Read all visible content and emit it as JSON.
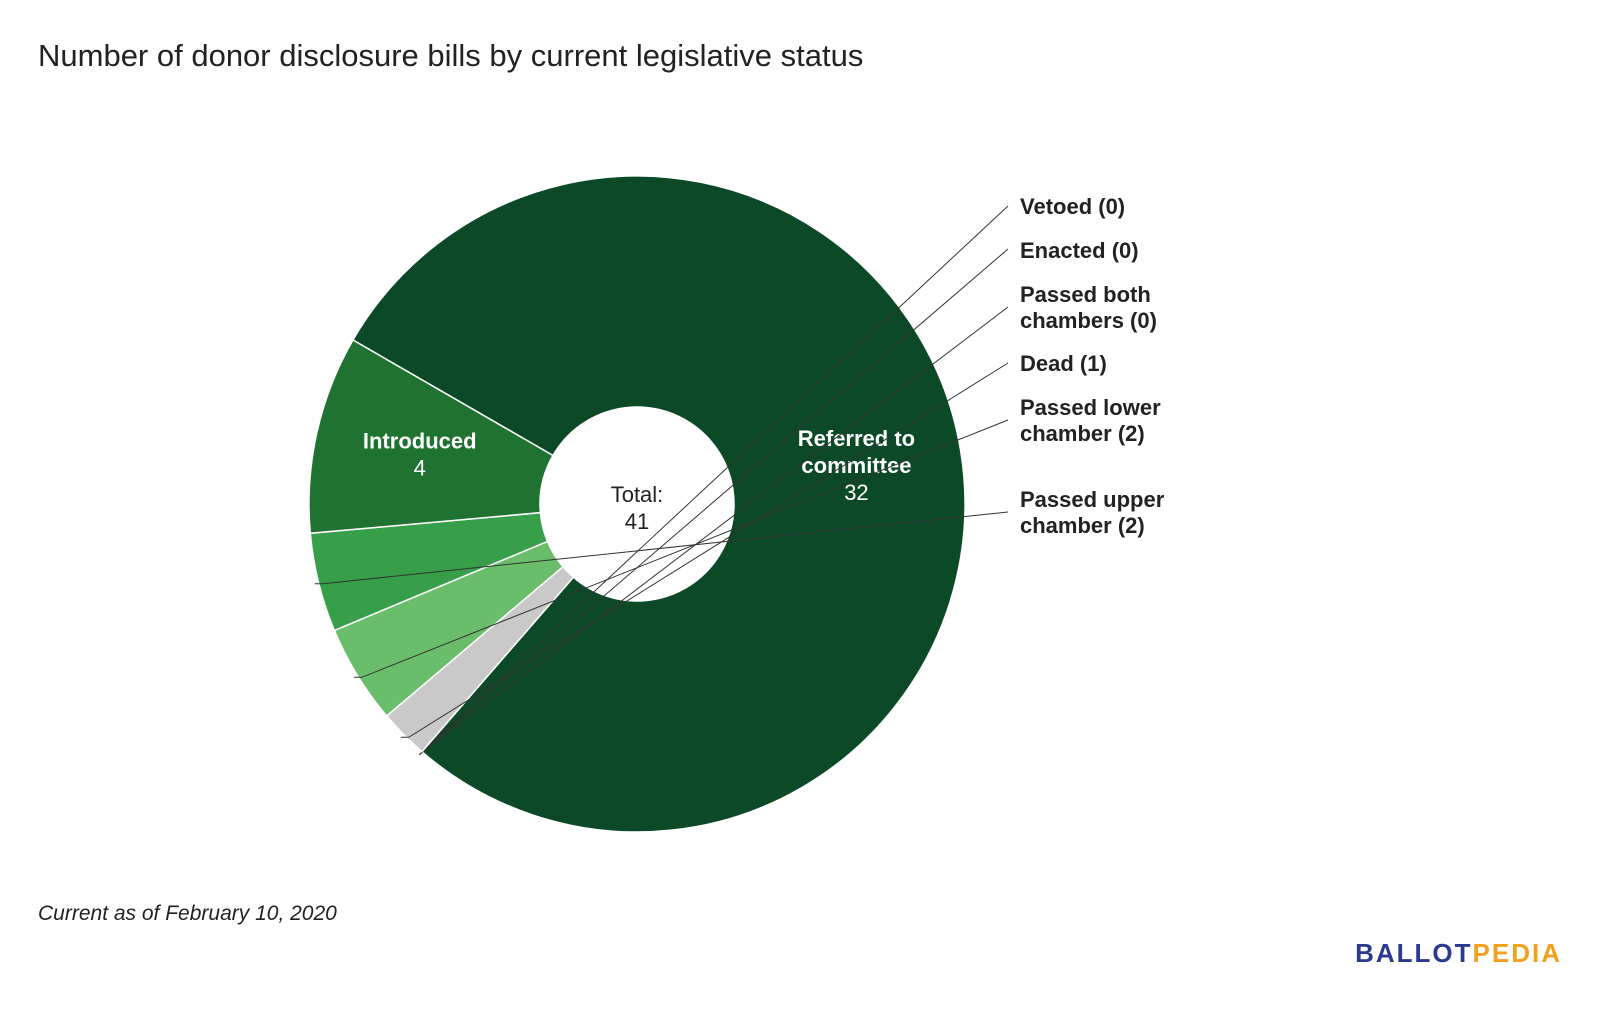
{
  "chart_data": {
    "type": "pie",
    "title": "Number of donor disclosure bills by current legislative status",
    "total_label": "Total:",
    "total_value": "41",
    "slices": [
      {
        "name": "Referred to committee",
        "label_lines": [
          "Referred to",
          "committee"
        ],
        "value": 32,
        "value_label": "32",
        "color": "#0c4a27",
        "label_style": "inside"
      },
      {
        "name": "Vetoed",
        "label_lines": [
          "Vetoed (0)"
        ],
        "value": 0,
        "color": "#8e8e8e",
        "label_style": "callout"
      },
      {
        "name": "Enacted",
        "label_lines": [
          "Enacted (0)"
        ],
        "value": 0,
        "color": "#a8a8a8",
        "label_style": "callout"
      },
      {
        "name": "Passed both chambers",
        "label_lines": [
          "Passed both",
          "chambers (0)"
        ],
        "value": 0,
        "color": "#b8b8b8",
        "label_style": "callout"
      },
      {
        "name": "Dead",
        "label_lines": [
          "Dead (1)"
        ],
        "value": 1,
        "color": "#c9c9c9",
        "label_style": "callout"
      },
      {
        "name": "Passed lower chamber",
        "label_lines": [
          "Passed lower",
          "chamber (2)"
        ],
        "value": 2,
        "color": "#6abd6a",
        "label_style": "callout"
      },
      {
        "name": "Passed upper chamber",
        "label_lines": [
          "Passed upper",
          "chamber (2)"
        ],
        "value": 2,
        "color": "#379e4a",
        "label_style": "callout"
      },
      {
        "name": "Introduced",
        "label_lines": [
          "Introduced"
        ],
        "value": 4,
        "value_label": "4",
        "color": "#1f7230",
        "label_style": "inside"
      }
    ]
  },
  "footnote": "Current as of February 10, 2020",
  "logo": {
    "part1": "BALLOT",
    "part2": "PEDIA"
  }
}
